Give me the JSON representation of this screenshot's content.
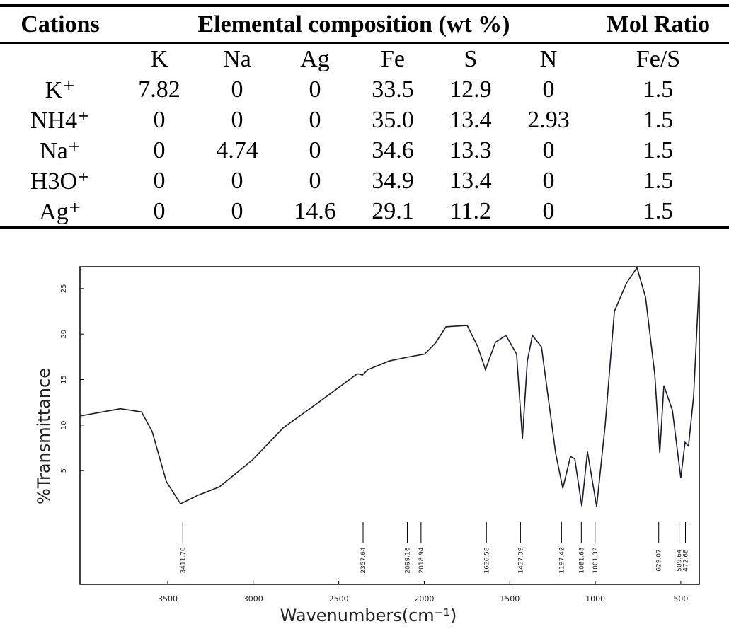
{
  "table": {
    "header": [
      "Cations",
      "Elemental composition (wt %)",
      "Mol Ratio"
    ],
    "subheader": [
      "K",
      "Na",
      "Ag",
      "Fe",
      "S",
      "N",
      "Fe/S"
    ],
    "rows": [
      [
        "K⁺",
        "7.82",
        "0",
        "0",
        "33.5",
        "12.9",
        "0",
        "1.5"
      ],
      [
        "NH4⁺",
        "0",
        "0",
        "0",
        "35.0",
        "13.4",
        "2.93",
        "1.5"
      ],
      [
        "Na⁺",
        "0",
        "4.74",
        "0",
        "34.6",
        "13.3",
        "0",
        "1.5"
      ],
      [
        "H3O⁺",
        "0",
        "0",
        "0",
        "34.9",
        "13.4",
        "0",
        "1.5"
      ],
      [
        "Ag⁺",
        "0",
        "0",
        "14.6",
        "29.1",
        "11.2",
        "0",
        "1.5"
      ]
    ]
  },
  "chart_data": {
    "type": "line",
    "xlabel": "Wavenumbers(cm⁻¹)",
    "ylabel": "%Transmittance",
    "x": [
      4013,
      3777,
      3653,
      3591,
      3508,
      3425,
      3322,
      3198,
      3003,
      2825,
      2618,
      2391,
      2362,
      2329,
      2205,
      2101,
      1998,
      1935,
      1873,
      1749,
      1687,
      1642,
      1584,
      1522,
      1460,
      1426,
      1397,
      1368,
      1315,
      1232,
      1190,
      1145,
      1120,
      1079,
      1046,
      992,
      942,
      888,
      818,
      756,
      706,
      652,
      623,
      599,
      549,
      500,
      475,
      455,
      425,
      392
    ],
    "values": [
      11.0,
      11.8,
      11.45,
      9.3,
      3.8,
      1.35,
      2.3,
      3.2,
      6.2,
      9.7,
      12.5,
      15.65,
      15.5,
      16.1,
      17.05,
      17.45,
      17.8,
      19.0,
      20.8,
      20.95,
      18.6,
      16.1,
      19.1,
      19.85,
      17.8,
      8.5,
      17.05,
      19.85,
      18.6,
      6.95,
      3.05,
      6.55,
      6.3,
      1.1,
      7.1,
      1.05,
      10.05,
      22.5,
      25.6,
      27.3,
      24.05,
      15.5,
      6.95,
      14.35,
      11.6,
      4.2,
      8.1,
      7.7,
      13.15,
      26.0
    ],
    "color": "#1a1a2e",
    "xlim": [
      4013,
      392
    ],
    "ylim": [
      -7.5,
      27.4
    ],
    "xticks": [
      3500,
      3000,
      2500,
      2000,
      1500,
      1000,
      500
    ],
    "yticks": [
      5,
      10,
      15,
      20,
      25
    ],
    "annotations": [
      {
        "value": 3411.7,
        "label": "3411.70"
      },
      {
        "value": 2357.64,
        "label": "2357.64"
      },
      {
        "value": 2099.16,
        "label": "2099.16"
      },
      {
        "value": 2018.94,
        "label": "2018.94"
      },
      {
        "value": 1636.58,
        "label": "1636.58"
      },
      {
        "value": 1437.39,
        "label": "1437.39"
      },
      {
        "value": 1197.42,
        "label": "1197.42"
      },
      {
        "value": 1081.68,
        "label": "1081.68"
      },
      {
        "value": 1001.32,
        "label": "1001.32"
      },
      {
        "value": 629.07,
        "label": "629.07"
      },
      {
        "value": 509.64,
        "label": "509.64"
      },
      {
        "value": 472.68,
        "label": "472.68"
      }
    ]
  }
}
